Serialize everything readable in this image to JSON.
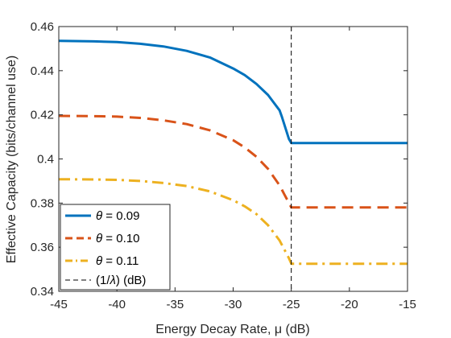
{
  "chart_data": {
    "type": "line",
    "xlabel": "Energy Decay Rate, μ (dB)",
    "ylabel": "Effective Capacity (bits/channel use)",
    "xlim": [
      -45,
      -15
    ],
    "ylim": [
      0.34,
      0.46
    ],
    "xticks": [
      -45,
      -40,
      -35,
      -30,
      -25,
      -20,
      -15
    ],
    "yticks": [
      0.34,
      0.36,
      0.38,
      0.4,
      0.42,
      0.44,
      0.46
    ],
    "xtick_labels": [
      "-45",
      "-40",
      "-35",
      "-30",
      "-25",
      "-20",
      "-15"
    ],
    "ytick_labels": [
      "0.34",
      "0.36",
      "0.38",
      "0.4",
      "0.42",
      "0.44",
      "0.46"
    ],
    "grid": false,
    "legend_position": "bottom-left",
    "series": [
      {
        "name": "θ = 0.09",
        "legend_prefix": "θ",
        "legend_suffix": " = 0.09",
        "color": "#0072BD",
        "style": "solid",
        "x": [
          -45,
          -42,
          -40,
          -38,
          -36,
          -34,
          -32,
          -30,
          -29,
          -28,
          -27,
          -26,
          -25.8,
          -25.2,
          -25,
          -15
        ],
        "y": [
          0.4535,
          0.4533,
          0.453,
          0.4522,
          0.451,
          0.449,
          0.446,
          0.441,
          0.438,
          0.434,
          0.429,
          0.422,
          0.419,
          0.409,
          0.4072,
          0.4072
        ]
      },
      {
        "name": "θ = 0.10",
        "legend_prefix": "θ",
        "legend_suffix": " = 0.10",
        "color": "#D95319",
        "style": "dashed",
        "x": [
          -45,
          -42,
          -40,
          -38,
          -36,
          -34,
          -32,
          -30,
          -29,
          -28,
          -27,
          -26,
          -25.6,
          -25.2,
          -25,
          -15
        ],
        "y": [
          0.4195,
          0.4194,
          0.4192,
          0.4186,
          0.4175,
          0.4158,
          0.413,
          0.4085,
          0.4052,
          0.401,
          0.3955,
          0.388,
          0.384,
          0.38,
          0.378,
          0.378
        ]
      },
      {
        "name": "θ = 0.11",
        "legend_prefix": "θ",
        "legend_suffix": " = 0.11",
        "color": "#EDB120",
        "style": "dashdot",
        "x": [
          -45,
          -42,
          -40,
          -38,
          -36,
          -34,
          -32,
          -30,
          -29,
          -28,
          -27,
          -26,
          -25.6,
          -25.2,
          -25,
          -15
        ],
        "y": [
          0.3908,
          0.3907,
          0.3905,
          0.39,
          0.3891,
          0.3877,
          0.3853,
          0.3813,
          0.3785,
          0.375,
          0.37,
          0.363,
          0.359,
          0.355,
          0.3525,
          0.3525
        ]
      }
    ],
    "reference_line": {
      "name": "(1/λ) (dB)",
      "legend_prefix": "(1/",
      "legend_symbol": "λ",
      "legend_suffix": ") (dB)",
      "x": -25,
      "color": "#000000",
      "style": "dashed"
    }
  }
}
